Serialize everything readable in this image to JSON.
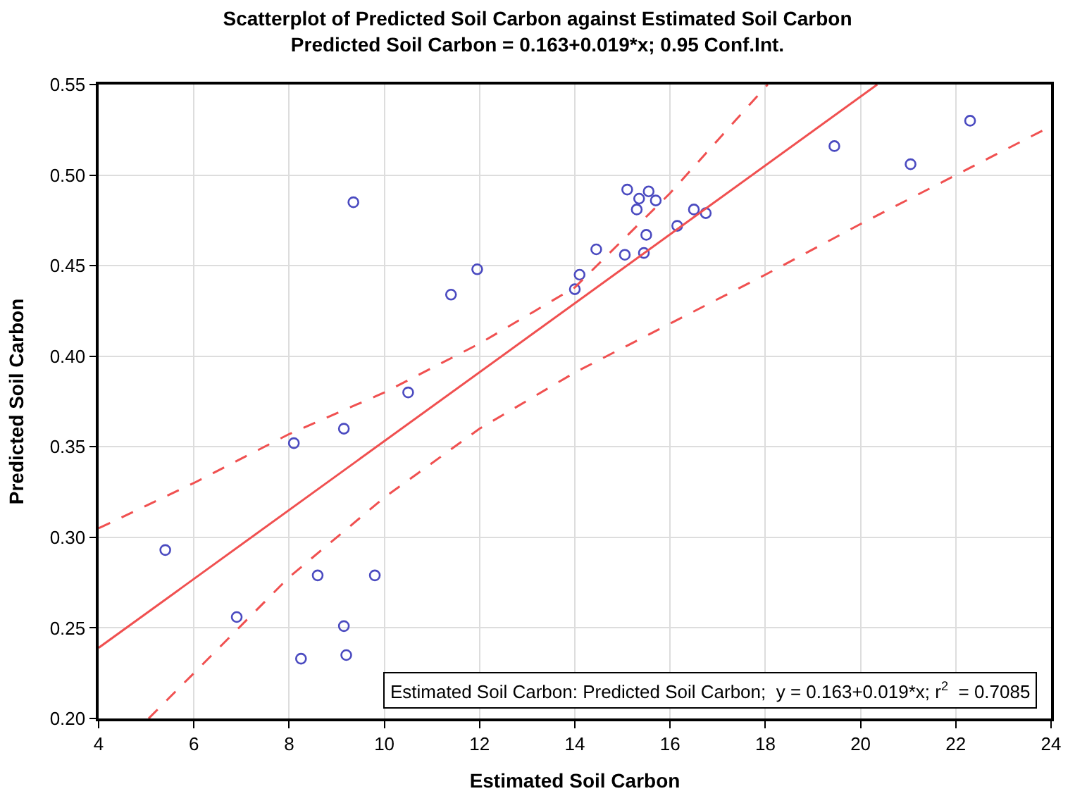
{
  "chart_data": {
    "type": "scatter",
    "title": "Scatterplot of Predicted Soil Carbon against Estimated Soil Carbon",
    "subtitle": "Predicted Soil Carbon = 0.163+0.019*x; 0.95 Conf.Int.",
    "xlabel": "Estimated Soil Carbon",
    "ylabel": "Predicted Soil Carbon",
    "xlim": [
      4,
      24
    ],
    "xticks": [
      4,
      6,
      8,
      10,
      12,
      14,
      16,
      18,
      20,
      22,
      24
    ],
    "ylim": [
      0.2,
      0.55
    ],
    "yticks": [
      {
        "value": 0.2,
        "label": "0.20"
      },
      0.25,
      {
        "value": 0.3,
        "label": "0.30"
      },
      0.35,
      {
        "value": 0.4,
        "label": "0.40"
      },
      0.45,
      {
        "value": 0.5,
        "label": "0.50"
      },
      0.55
    ],
    "grid": true,
    "marker": "circle",
    "series": [
      {
        "color": "#4a4ac0",
        "x": [
          5.4,
          6.9,
          8.1,
          8.25,
          8.6,
          9.15,
          9.15,
          9.2,
          9.35,
          9.8,
          10.5,
          11.4,
          11.95,
          14.0,
          14.1,
          14.45,
          15.05,
          15.1,
          15.3,
          15.35,
          15.45,
          15.5,
          15.55,
          15.7,
          16.15,
          16.5,
          16.75,
          19.45,
          21.05,
          22.3
        ],
        "values": [
          0.293,
          0.256,
          0.352,
          0.233,
          0.279,
          0.36,
          0.251,
          0.235,
          0.485,
          0.279,
          0.38,
          0.434,
          0.448,
          0.437,
          0.445,
          0.459,
          0.456,
          0.492,
          0.481,
          0.487,
          0.457,
          0.467,
          0.491,
          0.486,
          0.472,
          0.481,
          0.479,
          0.516,
          0.506,
          0.53
        ]
      },
      {
        "type": "line",
        "color": "#f05050",
        "line_style": "solid",
        "marker": "none",
        "x": [
          4,
          20.35
        ],
        "values": [
          0.239,
          0.55
        ]
      },
      {
        "type": "line",
        "color": "#f05050",
        "line_style": "dashed",
        "marker": "none",
        "x": [
          4,
          6,
          8,
          10,
          12,
          14,
          16,
          18.05
        ],
        "values": [
          0.305,
          0.33,
          0.357,
          0.38,
          0.407,
          0.438,
          0.49,
          0.55
        ]
      },
      {
        "type": "line",
        "color": "#f05050",
        "line_style": "dashed",
        "marker": "none",
        "x": [
          5.05,
          6,
          8,
          10,
          12,
          14,
          16,
          18,
          20,
          22,
          24
        ],
        "values": [
          0.2,
          0.225,
          0.278,
          0.322,
          0.36,
          0.391,
          0.418,
          0.445,
          0.473,
          0.5,
          0.527
        ]
      }
    ],
    "annotations": [
      "Estimated Soil Carbon: Predicted Soil Carbon;  y = 0.163+0.019*x; r$^{2}$  = 0.7085"
    ]
  }
}
